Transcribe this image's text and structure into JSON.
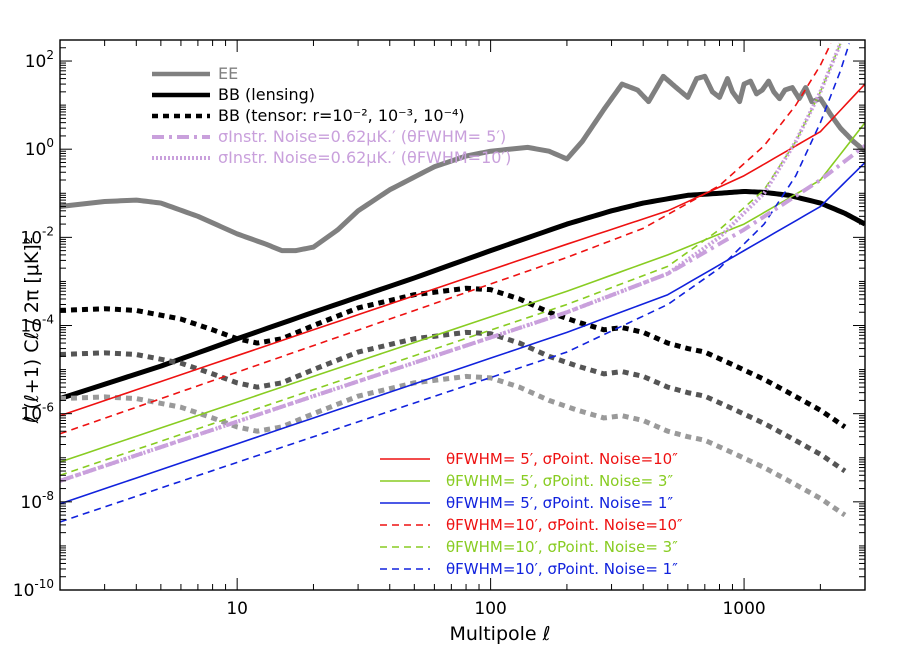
{
  "chart_data": {
    "type": "line",
    "xscale": "log",
    "yscale": "log",
    "xlim": [
      2,
      3000
    ],
    "ylim": [
      1e-10,
      300
    ],
    "xlabel": "Multipole  ℓ",
    "ylabel": "ℓ (ℓ+1)  Cℓ / 2π    [μK]²",
    "x_ticks": [
      {
        "value": 10,
        "label": "10"
      },
      {
        "value": 100,
        "label": "100"
      },
      {
        "value": 1000,
        "label": "1000"
      }
    ],
    "y_ticks": [
      {
        "value": 1e-10,
        "base": "10",
        "exp": "-10"
      },
      {
        "value": 1e-08,
        "base": "10",
        "exp": "-8"
      },
      {
        "value": 1e-06,
        "base": "10",
        "exp": "-6"
      },
      {
        "value": 0.0001,
        "base": "10",
        "exp": "-4"
      },
      {
        "value": 0.01,
        "base": "10",
        "exp": "-2"
      },
      {
        "value": 1,
        "base": "10",
        "exp": "0"
      },
      {
        "value": 100,
        "base": "10",
        "exp": "2"
      }
    ],
    "colors": {
      "ee": "#808080",
      "bb": "#000000",
      "noise": "#c9a0dc",
      "red": "#ee1111",
      "green": "#88cc22",
      "blue": "#1122dd"
    },
    "legend_top": [
      {
        "name": "ee",
        "label": "EE",
        "style": "solid",
        "color": "#808080"
      },
      {
        "name": "bb-lensing",
        "label": "BB (lensing)",
        "style": "solid",
        "color": "#000000"
      },
      {
        "name": "bb-tensor",
        "label": "BB (tensor: r=10⁻², 10⁻³, 10⁻⁴)",
        "style": "dotted",
        "color": "#000000"
      },
      {
        "name": "noise-5",
        "label": "σInstr. Noise=0.62μK.′ (θFWHM= 5′)",
        "style": "dashdot",
        "color": "#c9a0dc"
      },
      {
        "name": "noise-10",
        "label": "σInstr. Noise=0.62μK.′ (θFWHM=10′)",
        "style": "finedot",
        "color": "#c9a0dc"
      }
    ],
    "legend_bottom": [
      {
        "name": "p5-10",
        "label": "θFWHM= 5′,   σPoint. Noise=10″",
        "style": "solid",
        "color": "#ee1111"
      },
      {
        "name": "p5-3",
        "label": "θFWHM= 5′,   σPoint. Noise= 3″",
        "style": "solid",
        "color": "#88cc22"
      },
      {
        "name": "p5-1",
        "label": "θFWHM= 5′,   σPoint. Noise= 1″",
        "style": "solid",
        "color": "#1122dd"
      },
      {
        "name": "p10-10",
        "label": "θFWHM=10′,   σPoint. Noise=10″",
        "style": "dashed",
        "color": "#ee1111"
      },
      {
        "name": "p10-3",
        "label": "θFWHM=10′,   σPoint. Noise= 3″",
        "style": "dashed",
        "color": "#88cc22"
      },
      {
        "name": "p10-1",
        "label": "θFWHM=10′,   σPoint. Noise= 1″",
        "style": "dashed",
        "color": "#1122dd"
      }
    ],
    "series": [
      {
        "name": "ee",
        "color": "#808080",
        "style": "solid",
        "width": 5,
        "points": [
          [
            2,
            0.05
          ],
          [
            3,
            0.065
          ],
          [
            4,
            0.07
          ],
          [
            5,
            0.06
          ],
          [
            7,
            0.03
          ],
          [
            10,
            0.012
          ],
          [
            13,
            0.007
          ],
          [
            15,
            0.005
          ],
          [
            17,
            0.005
          ],
          [
            20,
            0.006
          ],
          [
            25,
            0.015
          ],
          [
            30,
            0.04
          ],
          [
            40,
            0.12
          ],
          [
            60,
            0.4
          ],
          [
            80,
            0.7
          ],
          [
            100,
            0.9
          ],
          [
            140,
            1.1
          ],
          [
            170,
            0.9
          ],
          [
            200,
            0.6
          ],
          [
            230,
            1.5
          ],
          [
            280,
            8
          ],
          [
            330,
            30
          ],
          [
            380,
            22
          ],
          [
            420,
            12
          ],
          [
            480,
            45
          ],
          [
            540,
            25
          ],
          [
            600,
            15
          ],
          [
            650,
            40
          ],
          [
            700,
            45
          ],
          [
            750,
            20
          ],
          [
            800,
            15
          ],
          [
            860,
            40
          ],
          [
            900,
            20
          ],
          [
            960,
            12
          ],
          [
            1000,
            30
          ],
          [
            1060,
            35
          ],
          [
            1120,
            18
          ],
          [
            1180,
            22
          ],
          [
            1250,
            35
          ],
          [
            1310,
            20
          ],
          [
            1380,
            14
          ],
          [
            1450,
            22
          ],
          [
            1550,
            25
          ],
          [
            1650,
            14
          ],
          [
            1750,
            25
          ],
          [
            1850,
            12
          ],
          [
            2000,
            14
          ],
          [
            2200,
            6
          ],
          [
            2400,
            3
          ],
          [
            2700,
            1.5
          ],
          [
            3000,
            0.9
          ]
        ]
      },
      {
        "name": "bb-lensing",
        "color": "#000000",
        "style": "solid",
        "width": 5,
        "points": [
          [
            2,
            2.2e-06
          ],
          [
            5,
            1.2e-05
          ],
          [
            10,
            5e-05
          ],
          [
            20,
            0.0002
          ],
          [
            50,
            0.0012
          ],
          [
            100,
            0.005
          ],
          [
            200,
            0.02
          ],
          [
            300,
            0.04
          ],
          [
            400,
            0.06
          ],
          [
            600,
            0.09
          ],
          [
            800,
            0.1
          ],
          [
            1000,
            0.11
          ],
          [
            1200,
            0.105
          ],
          [
            1500,
            0.09
          ],
          [
            2000,
            0.06
          ],
          [
            2500,
            0.035
          ],
          [
            3000,
            0.02
          ]
        ]
      },
      {
        "name": "bb-tensor-2",
        "color": "#000000",
        "style": "dotted",
        "width": 5,
        "points": [
          [
            2,
            0.00022
          ],
          [
            3,
            0.00024
          ],
          [
            4,
            0.00022
          ],
          [
            6,
            0.00014
          ],
          [
            8,
            8e-05
          ],
          [
            10,
            5e-05
          ],
          [
            12,
            4e-05
          ],
          [
            15,
            5e-05
          ],
          [
            20,
            0.0001
          ],
          [
            30,
            0.00025
          ],
          [
            50,
            0.0005
          ],
          [
            80,
            0.0007
          ],
          [
            100,
            0.00065
          ],
          [
            130,
            0.0004
          ],
          [
            170,
            0.0002
          ],
          [
            220,
            0.00012
          ],
          [
            280,
            8e-05
          ],
          [
            330,
            9e-05
          ],
          [
            400,
            7e-05
          ],
          [
            500,
            4e-05
          ],
          [
            600,
            3e-05
          ],
          [
            700,
            2.5e-05
          ],
          [
            900,
            1.3e-05
          ],
          [
            1200,
            6e-06
          ],
          [
            1500,
            3e-06
          ],
          [
            2000,
            1.2e-06
          ],
          [
            2500,
            5e-07
          ]
        ]
      },
      {
        "name": "bb-tensor-3",
        "color": "#555555",
        "style": "dotted",
        "width": 5,
        "points": [
          [
            2,
            2.2e-05
          ],
          [
            3,
            2.4e-05
          ],
          [
            4,
            2.2e-05
          ],
          [
            6,
            1.4e-05
          ],
          [
            8,
            8e-06
          ],
          [
            10,
            5e-06
          ],
          [
            12,
            4e-06
          ],
          [
            15,
            5e-06
          ],
          [
            20,
            1e-05
          ],
          [
            30,
            2.5e-05
          ],
          [
            50,
            5e-05
          ],
          [
            80,
            7e-05
          ],
          [
            100,
            6.5e-05
          ],
          [
            130,
            4e-05
          ],
          [
            170,
            2e-05
          ],
          [
            220,
            1.2e-05
          ],
          [
            280,
            8e-06
          ],
          [
            330,
            9e-06
          ],
          [
            400,
            7e-06
          ],
          [
            500,
            4e-06
          ],
          [
            600,
            3e-06
          ],
          [
            700,
            2.5e-06
          ],
          [
            900,
            1.3e-06
          ],
          [
            1200,
            6e-07
          ],
          [
            1500,
            3e-07
          ],
          [
            2000,
            1.2e-07
          ],
          [
            2500,
            5e-08
          ]
        ]
      },
      {
        "name": "bb-tensor-4",
        "color": "#9a9a9a",
        "style": "dotted",
        "width": 5,
        "points": [
          [
            2,
            2.2e-06
          ],
          [
            3,
            2.4e-06
          ],
          [
            4,
            2.2e-06
          ],
          [
            6,
            1.4e-06
          ],
          [
            8,
            8e-07
          ],
          [
            10,
            5e-07
          ],
          [
            12,
            4e-07
          ],
          [
            15,
            5e-07
          ],
          [
            20,
            1e-06
          ],
          [
            30,
            2.5e-06
          ],
          [
            50,
            5e-06
          ],
          [
            80,
            7e-06
          ],
          [
            100,
            6.5e-06
          ],
          [
            130,
            4e-06
          ],
          [
            170,
            2e-06
          ],
          [
            220,
            1.2e-06
          ],
          [
            280,
            8e-07
          ],
          [
            330,
            9e-07
          ],
          [
            400,
            7e-07
          ],
          [
            500,
            4e-07
          ],
          [
            600,
            3e-07
          ],
          [
            700,
            2.5e-07
          ],
          [
            900,
            1.3e-07
          ],
          [
            1200,
            6e-08
          ],
          [
            1500,
            3e-08
          ],
          [
            2000,
            1.2e-08
          ],
          [
            2500,
            5e-09
          ]
        ]
      },
      {
        "name": "p5-10",
        "color": "#ee1111",
        "style": "solid",
        "width": 1.6,
        "points": [
          [
            2,
            9e-07
          ],
          [
            20,
            8e-05
          ],
          [
            200,
            0.007
          ],
          [
            500,
            0.04
          ],
          [
            1000,
            0.25
          ],
          [
            2000,
            2.5
          ],
          [
            3000,
            30
          ]
        ]
      },
      {
        "name": "p10-10",
        "color": "#ee1111",
        "style": "dashed",
        "width": 1.6,
        "points": [
          [
            2,
            3.5e-07
          ],
          [
            20,
            3.5e-05
          ],
          [
            200,
            0.0035
          ],
          [
            400,
            0.016
          ],
          [
            800,
            0.15
          ],
          [
            1200,
            1.2
          ],
          [
            1600,
            10
          ],
          [
            2000,
            80
          ],
          [
            2200,
            250
          ]
        ]
      },
      {
        "name": "p5-3",
        "color": "#88cc22",
        "style": "solid",
        "width": 1.6,
        "points": [
          [
            2,
            8e-08
          ],
          [
            20,
            7e-06
          ],
          [
            200,
            0.0006
          ],
          [
            500,
            0.004
          ],
          [
            1000,
            0.02
          ],
          [
            2000,
            0.2
          ],
          [
            3000,
            4
          ]
        ]
      },
      {
        "name": "p10-3",
        "color": "#88cc22",
        "style": "dashed",
        "width": 1.6,
        "points": [
          [
            2,
            4e-08
          ],
          [
            20,
            3.5e-06
          ],
          [
            200,
            0.0003
          ],
          [
            500,
            0.0022
          ],
          [
            800,
            0.015
          ],
          [
            1200,
            0.12
          ],
          [
            1600,
            1.5
          ],
          [
            2000,
            20
          ],
          [
            2400,
            250
          ]
        ]
      },
      {
        "name": "p5-1",
        "color": "#1122dd",
        "style": "solid",
        "width": 1.6,
        "points": [
          [
            2,
            9e-09
          ],
          [
            20,
            8e-07
          ],
          [
            200,
            7e-05
          ],
          [
            500,
            0.0005
          ],
          [
            1000,
            0.005
          ],
          [
            2000,
            0.05
          ],
          [
            3000,
            0.5
          ]
        ]
      },
      {
        "name": "p10-1",
        "color": "#1122dd",
        "style": "dashed",
        "width": 1.6,
        "points": [
          [
            2,
            3.5e-09
          ],
          [
            20,
            3e-07
          ],
          [
            200,
            2.5e-05
          ],
          [
            500,
            0.0003
          ],
          [
            800,
            0.002
          ],
          [
            1200,
            0.02
          ],
          [
            1600,
            0.25
          ],
          [
            2000,
            4
          ],
          [
            2400,
            60
          ],
          [
            2600,
            250
          ]
        ]
      },
      {
        "name": "noise-5",
        "color": "#c9a0dc",
        "style": "dashdot",
        "width": 4,
        "points": [
          [
            2,
            3e-08
          ],
          [
            20,
            2.5e-06
          ],
          [
            200,
            0.0002
          ],
          [
            500,
            0.0015
          ],
          [
            1000,
            0.015
          ],
          [
            2000,
            0.2
          ],
          [
            3000,
            1.2
          ]
        ]
      },
      {
        "name": "noise-10",
        "color": "#c9a0dc",
        "style": "finedot",
        "width": 4,
        "points": [
          [
            2,
            3e-08
          ],
          [
            20,
            2.5e-06
          ],
          [
            200,
            0.0002
          ],
          [
            500,
            0.0015
          ],
          [
            800,
            0.01
          ],
          [
            1200,
            0.1
          ],
          [
            1600,
            1.5
          ],
          [
            2000,
            20
          ],
          [
            2400,
            250
          ]
        ]
      }
    ]
  }
}
